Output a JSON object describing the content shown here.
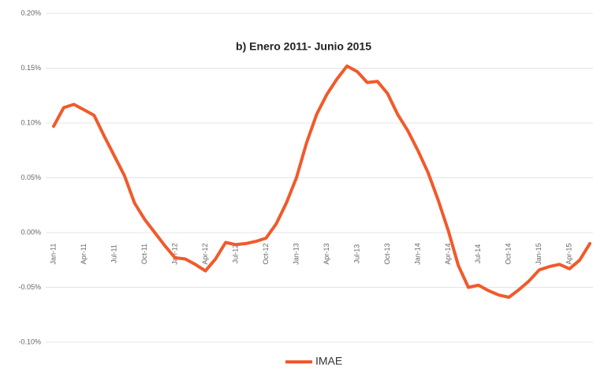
{
  "chart_data": {
    "type": "line",
    "title": "b) Enero 2011- Junio 2015",
    "categories": [
      "Jan-11",
      null,
      null,
      "Apr-11",
      null,
      null,
      "Jul-11",
      null,
      null,
      "Oct-11",
      null,
      null,
      "Jan-12",
      null,
      null,
      "Apr-12",
      null,
      null,
      "Jul-12",
      null,
      null,
      "Oct-12",
      null,
      null,
      "Jan-13",
      null,
      null,
      "Apr-13",
      null,
      null,
      "Jul-13",
      null,
      null,
      "Oct-13",
      null,
      null,
      "Jan-14",
      null,
      null,
      "Apr-14",
      null,
      null,
      "Jul-14",
      null,
      null,
      "Oct-14",
      null,
      null,
      "Jan-15",
      null,
      null,
      "Apr-15",
      null,
      null
    ],
    "series": [
      {
        "name": "IMAE",
        "color": "#f15a2b",
        "values": [
          0.097,
          0.114,
          0.117,
          0.112,
          0.107,
          0.088,
          0.07,
          0.052,
          0.027,
          0.012,
          0.0,
          -0.012,
          -0.023,
          -0.024,
          -0.029,
          -0.035,
          -0.024,
          -0.009,
          -0.011,
          -0.01,
          -0.008,
          -0.005,
          0.008,
          0.027,
          0.05,
          0.082,
          0.108,
          0.126,
          0.14,
          0.152,
          0.147,
          0.137,
          0.138,
          0.127,
          0.108,
          0.093,
          0.075,
          0.055,
          0.03,
          0.002,
          -0.03,
          -0.05,
          -0.048,
          -0.053,
          -0.057,
          -0.059,
          -0.052,
          -0.044,
          -0.034,
          -0.031,
          -0.029,
          -0.033,
          -0.025,
          -0.01
        ]
      }
    ],
    "ylim": [
      -0.1,
      0.2
    ],
    "yticks": [
      {
        "value": -0.1,
        "label": "-0.10%"
      },
      {
        "value": -0.05,
        "label": "-0.05%"
      },
      {
        "value": 0,
        "label": "0.00%"
      },
      {
        "value": 0.05,
        "label": "0.05%"
      },
      {
        "value": 0.1,
        "label": "0.10%"
      },
      {
        "value": 0.15,
        "label": "0.15%"
      },
      {
        "value": 0.2,
        "label": "0.20%"
      }
    ],
    "grid": true,
    "legend": "bottom"
  }
}
